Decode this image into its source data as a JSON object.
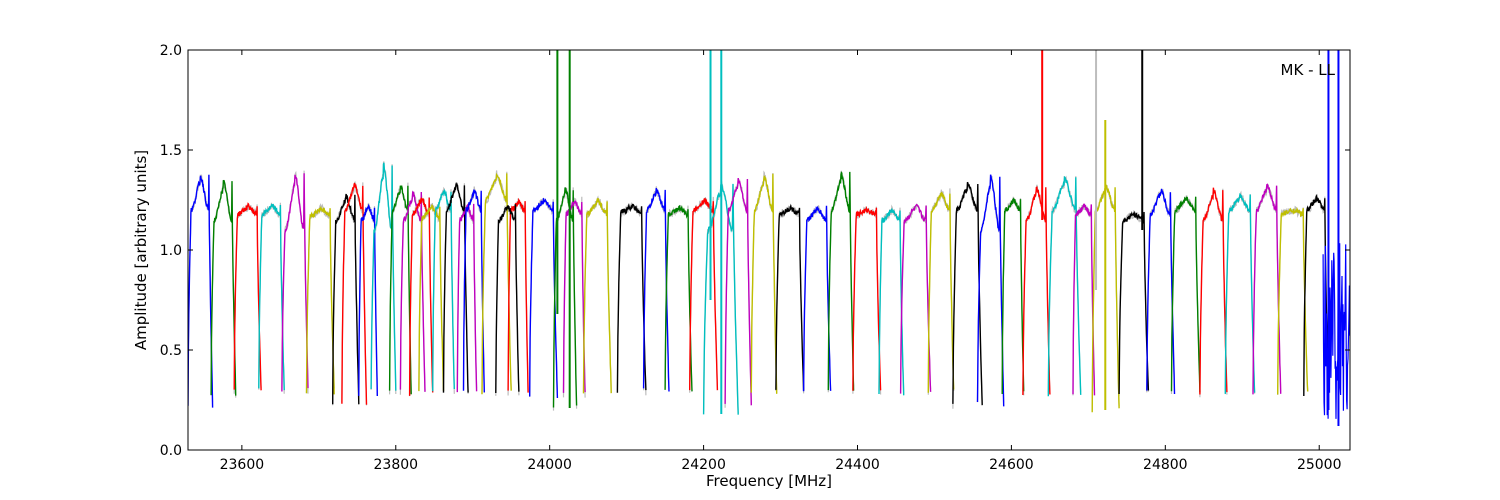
{
  "chart_data": {
    "type": "line",
    "title": "",
    "xlabel": "Frequency [MHz]",
    "ylabel": "Amplitude [arbitrary units]",
    "annotation": "MK - LL",
    "xlim": [
      23530,
      25040
    ],
    "ylim": [
      0.0,
      2.0
    ],
    "xticks": [
      23600,
      23800,
      24000,
      24200,
      24400,
      24600,
      24800,
      25000
    ],
    "yticks": [
      0.0,
      0.5,
      1.0,
      1.5,
      2.0
    ],
    "ytick_labels": [
      "0.0",
      "0.5",
      "1.0",
      "1.5",
      "2.0"
    ],
    "grid": false,
    "legend": "none",
    "colors": {
      "gray": "#bdbdbd",
      "blue": "#0000ff",
      "green": "#008000",
      "red": "#ff0000",
      "cyan": "#00bfbf",
      "magenta": "#bf00bf",
      "yellow": "#bfbf00",
      "black": "#000000"
    },
    "segments": [
      {
        "color": "blue",
        "x_start": 23530,
        "x_end": 23562,
        "plateau": 1.2,
        "peak": 1.37,
        "floor": 0.22
      },
      {
        "color": "green",
        "x_start": 23560,
        "x_end": 23592,
        "plateau": 1.15,
        "peak": 1.34,
        "floor": 0.28
      },
      {
        "color": "red",
        "x_start": 23590,
        "x_end": 23625,
        "plateau": 1.18,
        "peak": 1.22,
        "floor": 0.29
      },
      {
        "color": "cyan",
        "x_start": 23622,
        "x_end": 23655,
        "plateau": 1.18,
        "peak": 1.22,
        "floor": 0.3
      },
      {
        "color": "magenta",
        "x_start": 23652,
        "x_end": 23686,
        "plateau": 1.1,
        "peak": 1.38,
        "floor": 0.3
      },
      {
        "color": "yellow",
        "x_start": 23684,
        "x_end": 23720,
        "plateau": 1.17,
        "peak": 1.21,
        "floor": 0.29
      },
      {
        "color": "black",
        "x_start": 23718,
        "x_end": 23752,
        "plateau": 1.15,
        "peak": 1.27,
        "floor": 0.24
      },
      {
        "color": "red",
        "x_start": 23730,
        "x_end": 23762,
        "plateau": 1.2,
        "peak": 1.33,
        "floor": 0.23
      },
      {
        "color": "blue",
        "x_start": 23752,
        "x_end": 23776,
        "plateau": 1.15,
        "peak": 1.22,
        "floor": 0.28
      },
      {
        "color": "cyan",
        "x_start": 23768,
        "x_end": 23800,
        "plateau": 1.1,
        "peak": 1.43,
        "floor": 0.3
      },
      {
        "color": "green",
        "x_start": 23792,
        "x_end": 23820,
        "plateau": 1.2,
        "peak": 1.32,
        "floor": 0.29
      },
      {
        "color": "magenta",
        "x_start": 23806,
        "x_end": 23838,
        "plateau": 1.15,
        "peak": 1.28,
        "floor": 0.29
      },
      {
        "color": "red",
        "x_start": 23818,
        "x_end": 23848,
        "plateau": 1.18,
        "peak": 1.26,
        "floor": 0.28
      },
      {
        "color": "yellow",
        "x_start": 23830,
        "x_end": 23862,
        "plateau": 1.16,
        "peak": 1.22,
        "floor": 0.3
      },
      {
        "color": "cyan",
        "x_start": 23848,
        "x_end": 23876,
        "plateau": 1.2,
        "peak": 1.3,
        "floor": 0.3
      },
      {
        "color": "black",
        "x_start": 23862,
        "x_end": 23894,
        "plateau": 1.2,
        "peak": 1.33,
        "floor": 0.28
      },
      {
        "color": "magenta",
        "x_start": 23880,
        "x_end": 23905,
        "plateau": 1.15,
        "peak": 1.22,
        "floor": 0.29
      },
      {
        "color": "blue",
        "x_start": 23888,
        "x_end": 23915,
        "plateau": 1.2,
        "peak": 1.3,
        "floor": 0.3
      },
      {
        "color": "yellow",
        "x_start": 23912,
        "x_end": 23950,
        "plateau": 1.25,
        "peak": 1.38,
        "floor": 0.29
      },
      {
        "color": "red",
        "x_start": 23946,
        "x_end": 23972,
        "plateau": 1.2,
        "peak": 1.24,
        "floor": 0.29
      },
      {
        "color": "black",
        "x_start": 23930,
        "x_end": 23960,
        "plateau": 1.15,
        "peak": 1.22,
        "floor": 0.28
      },
      {
        "color": "blue",
        "x_start": 23974,
        "x_end": 24010,
        "plateau": 1.2,
        "peak": 1.25,
        "floor": 0.27
      },
      {
        "color": "green",
        "x_start": 24005,
        "x_end": 24035,
        "plateau": 1.15,
        "peak": 1.31,
        "floor": 0.21
      },
      {
        "color": "magenta",
        "x_start": 24018,
        "x_end": 24046,
        "plateau": 1.18,
        "peak": 1.25,
        "floor": 0.28
      },
      {
        "color": "yellow",
        "x_start": 24044,
        "x_end": 24080,
        "plateau": 1.18,
        "peak": 1.25,
        "floor": 0.29
      },
      {
        "color": "black",
        "x_start": 24088,
        "x_end": 24125,
        "plateau": 1.19,
        "peak": 1.22,
        "floor": 0.29
      },
      {
        "color": "blue",
        "x_start": 24122,
        "x_end": 24155,
        "plateau": 1.2,
        "peak": 1.3,
        "floor": 0.3
      },
      {
        "color": "green",
        "x_start": 24150,
        "x_end": 24185,
        "plateau": 1.18,
        "peak": 1.21,
        "floor": 0.29
      },
      {
        "color": "red",
        "x_start": 24182,
        "x_end": 24218,
        "plateau": 1.2,
        "peak": 1.25,
        "floor": 0.3
      },
      {
        "color": "cyan",
        "x_start": 24200,
        "x_end": 24245,
        "plateau": 1.1,
        "peak": 1.33,
        "floor": 0.18
      },
      {
        "color": "magenta",
        "x_start": 24228,
        "x_end": 24262,
        "plateau": 1.2,
        "peak": 1.35,
        "floor": 0.22
      },
      {
        "color": "yellow",
        "x_start": 24262,
        "x_end": 24295,
        "plateau": 1.2,
        "peak": 1.37,
        "floor": 0.29
      },
      {
        "color": "black",
        "x_start": 24294,
        "x_end": 24330,
        "plateau": 1.18,
        "peak": 1.21,
        "floor": 0.29
      },
      {
        "color": "blue",
        "x_start": 24330,
        "x_end": 24365,
        "plateau": 1.15,
        "peak": 1.21,
        "floor": 0.29
      },
      {
        "color": "green",
        "x_start": 24362,
        "x_end": 24395,
        "plateau": 1.2,
        "peak": 1.38,
        "floor": 0.3
      },
      {
        "color": "red",
        "x_start": 24394,
        "x_end": 24430,
        "plateau": 1.18,
        "peak": 1.2,
        "floor": 0.29
      },
      {
        "color": "cyan",
        "x_start": 24428,
        "x_end": 24460,
        "plateau": 1.15,
        "peak": 1.2,
        "floor": 0.28
      },
      {
        "color": "magenta",
        "x_start": 24456,
        "x_end": 24495,
        "plateau": 1.15,
        "peak": 1.22,
        "floor": 0.29
      },
      {
        "color": "yellow",
        "x_start": 24492,
        "x_end": 24525,
        "plateau": 1.2,
        "peak": 1.29,
        "floor": 0.29
      },
      {
        "color": "black",
        "x_start": 24524,
        "x_end": 24562,
        "plateau": 1.2,
        "peak": 1.33,
        "floor": 0.22
      },
      {
        "color": "blue",
        "x_start": 24556,
        "x_end": 24590,
        "plateau": 1.1,
        "peak": 1.37,
        "floor": 0.23
      },
      {
        "color": "green",
        "x_start": 24588,
        "x_end": 24616,
        "plateau": 1.2,
        "peak": 1.25,
        "floor": 0.29
      },
      {
        "color": "red",
        "x_start": 24615,
        "x_end": 24650,
        "plateau": 1.15,
        "peak": 1.31,
        "floor": 0.28
      },
      {
        "color": "cyan",
        "x_start": 24648,
        "x_end": 24690,
        "plateau": 1.2,
        "peak": 1.36,
        "floor": 0.28
      },
      {
        "color": "magenta",
        "x_start": 24680,
        "x_end": 24708,
        "plateau": 1.18,
        "peak": 1.22,
        "floor": 0.28
      },
      {
        "color": "yellow",
        "x_start": 24705,
        "x_end": 24740,
        "plateau": 1.2,
        "peak": 1.32,
        "floor": 0.2
      },
      {
        "color": "black",
        "x_start": 24740,
        "x_end": 24778,
        "plateau": 1.15,
        "peak": 1.18,
        "floor": 0.29
      },
      {
        "color": "blue",
        "x_start": 24776,
        "x_end": 24812,
        "plateau": 1.18,
        "peak": 1.3,
        "floor": 0.29
      },
      {
        "color": "green",
        "x_start": 24808,
        "x_end": 24845,
        "plateau": 1.2,
        "peak": 1.26,
        "floor": 0.29
      },
      {
        "color": "red",
        "x_start": 24845,
        "x_end": 24880,
        "plateau": 1.15,
        "peak": 1.3,
        "floor": 0.28
      },
      {
        "color": "cyan",
        "x_start": 24878,
        "x_end": 24916,
        "plateau": 1.2,
        "peak": 1.27,
        "floor": 0.28
      },
      {
        "color": "magenta",
        "x_start": 24914,
        "x_end": 24950,
        "plateau": 1.2,
        "peak": 1.32,
        "floor": 0.28
      },
      {
        "color": "yellow",
        "x_start": 24946,
        "x_end": 24985,
        "plateau": 1.18,
        "peak": 1.2,
        "floor": 0.28
      },
      {
        "color": "black",
        "x_start": 24980,
        "x_end": 25012,
        "plateau": 1.2,
        "peak": 1.26,
        "floor": 0.28
      }
    ],
    "spikes": [
      {
        "color": "green",
        "x": 24010,
        "y_top": 2.0,
        "y_bottom": 0.68
      },
      {
        "color": "green",
        "x": 24026,
        "y_top": 2.0,
        "y_bottom": 0.21
      },
      {
        "color": "cyan",
        "x": 24209,
        "y_top": 2.0,
        "y_bottom": 0.75
      },
      {
        "color": "cyan",
        "x": 24223,
        "y_top": 2.0,
        "y_bottom": 0.18
      },
      {
        "color": "red",
        "x": 24640,
        "y_top": 2.0,
        "y_bottom": 1.15
      },
      {
        "color": "gray",
        "x": 24710,
        "y_top": 2.0,
        "y_bottom": 0.8
      },
      {
        "color": "yellow",
        "x": 24722,
        "y_top": 1.65,
        "y_bottom": 0.2
      },
      {
        "color": "black",
        "x": 24770,
        "y_top": 2.0,
        "y_bottom": 1.1
      },
      {
        "color": "blue",
        "x": 25012,
        "y_top": 2.0,
        "y_bottom": 0.2
      },
      {
        "color": "blue",
        "x": 25025,
        "y_top": 2.0,
        "y_bottom": 0.12
      }
    ],
    "noise_band": {
      "color": "blue",
      "x_start": 25005,
      "x_end": 25040,
      "y_min": 0.15,
      "y_max": 1.12
    }
  }
}
